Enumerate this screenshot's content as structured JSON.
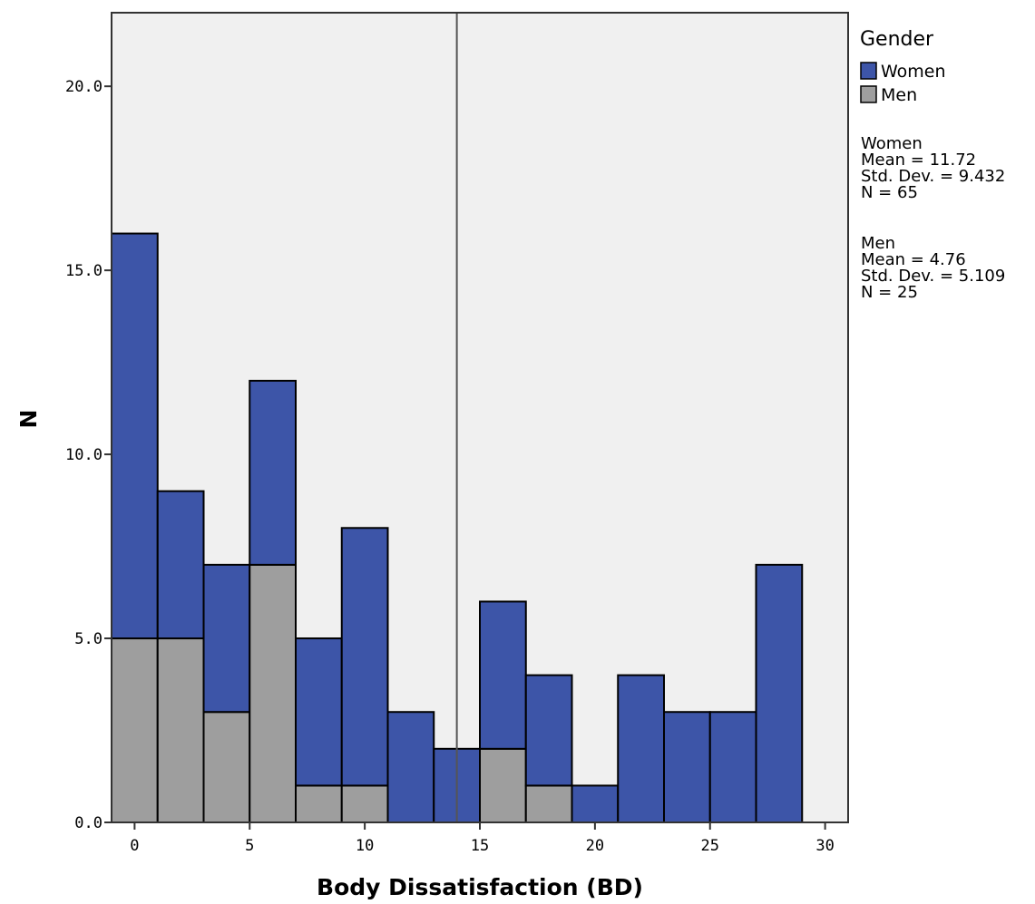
{
  "chart_data": {
    "type": "bar",
    "subtype": "stacked-histogram",
    "xlabel": "Body Dissatisfaction (BD)",
    "ylabel": "N",
    "xlim": [
      -1,
      31
    ],
    "ylim": [
      0,
      22
    ],
    "x_ticks": [
      0,
      5,
      10,
      15,
      20,
      25,
      30
    ],
    "y_ticks": [
      0,
      5,
      10,
      15,
      20
    ],
    "y_tick_labels": [
      "0.0",
      "5.0",
      "10.0",
      "15.0",
      "20.0"
    ],
    "bins": [
      [
        -1,
        1
      ],
      [
        1,
        3
      ],
      [
        3,
        5
      ],
      [
        5,
        7
      ],
      [
        7,
        9
      ],
      [
        9,
        11
      ],
      [
        11,
        13
      ],
      [
        13,
        15
      ],
      [
        15,
        17
      ],
      [
        17,
        19
      ],
      [
        19,
        21
      ],
      [
        21,
        23
      ],
      [
        23,
        25
      ],
      [
        25,
        27
      ],
      [
        27,
        29
      ]
    ],
    "series": [
      {
        "name": "Women",
        "color": "#3d55a8",
        "values": [
          11,
          4,
          4,
          5,
          4,
          7,
          3,
          2,
          4,
          3,
          1,
          4,
          3,
          3,
          7
        ]
      },
      {
        "name": "Men",
        "color": "#9e9e9e",
        "values": [
          5,
          5,
          3,
          7,
          1,
          1,
          0,
          0,
          2,
          1,
          0,
          0,
          0,
          0,
          0
        ]
      }
    ],
    "stack_order": [
      "Men",
      "Women"
    ],
    "reference_line": {
      "x": 14
    },
    "legend": {
      "title": "Gender",
      "position": "right",
      "items": [
        "Women",
        "Men"
      ]
    },
    "stats": [
      {
        "lines": [
          "Women",
          "Mean = 11.72",
          "Std. Dev. = 9.432",
          "N = 65"
        ]
      },
      {
        "lines": [
          "Men",
          "Mean = 4.76",
          "Std. Dev. = 5.109",
          "N = 25"
        ]
      }
    ],
    "grid": false,
    "background_color": "#f0f0f0"
  }
}
